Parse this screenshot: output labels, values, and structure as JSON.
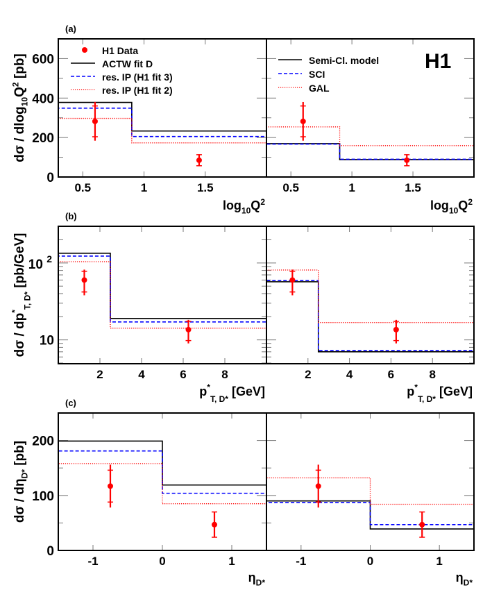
{
  "figure": {
    "logo": "H1",
    "colors": {
      "data": "#ff0000",
      "model_solid": "#000000",
      "model_dashed": "#0000ff",
      "model_dotted": "#ff0000"
    }
  },
  "legends": {
    "left": [
      {
        "key": "data",
        "label": "H1 Data",
        "style": "marker"
      },
      {
        "key": "actw",
        "label": "ACTW fit D",
        "style": "solid"
      },
      {
        "key": "resip3",
        "label": "res. IP (H1 fit 3)",
        "style": "dashed"
      },
      {
        "key": "resip2",
        "label": "res. IP (H1 fit 2)",
        "style": "dotted"
      }
    ],
    "right": [
      {
        "key": "semicl",
        "label": "Semi-Cl. model",
        "style": "solid"
      },
      {
        "key": "sci",
        "label": "SCI",
        "style": "dashed"
      },
      {
        "key": "gal",
        "label": "GAL",
        "style": "dotted"
      }
    ]
  },
  "chart_data": [
    {
      "id": "a",
      "panel_label": "(a)",
      "type": "line",
      "ylabel": {
        "pre": "dσ / dlog",
        "sub": "10",
        "main": "Q",
        "sup": "2",
        "post": "  [pb]"
      },
      "xlabel": {
        "pre": "log",
        "sub": "10",
        "main": "Q",
        "sup": "2"
      },
      "xlim": [
        0.3,
        2.0
      ],
      "ylim": [
        0,
        700
      ],
      "yscale": "linear",
      "xticks": [
        0.5,
        1,
        1.5
      ],
      "xtick_labels": [
        "0.5",
        "1",
        "1.5"
      ],
      "yticks": [
        0,
        200,
        400,
        600
      ],
      "ytick_labels": [
        "0",
        "200",
        "400",
        "600"
      ],
      "bin_edges": [
        0.3,
        0.9,
        2.0
      ],
      "data": {
        "name": "H1 Data",
        "x": [
          0.6,
          1.45
        ],
        "y": [
          282,
          85
        ],
        "err_stat": [
          78,
          28
        ],
        "err_tot": [
          98,
          30
        ]
      },
      "left": {
        "series": [
          {
            "name": "ACTW fit D",
            "style": "solid",
            "values": [
              378,
              233
            ]
          },
          {
            "name": "res. IP (H1 fit 3)",
            "style": "dashed",
            "values": [
              349,
              205
            ]
          },
          {
            "name": "res. IP (H1 fit 2)",
            "style": "dotted",
            "values": [
              297,
              173
            ]
          }
        ]
      },
      "right": {
        "series": [
          {
            "name": "Semi-Cl. model",
            "style": "solid",
            "values": [
              169,
              88
            ]
          },
          {
            "name": "SCI",
            "style": "dashed",
            "values": [
              167,
              90
            ]
          },
          {
            "name": "GAL",
            "style": "dotted",
            "values": [
              254,
              159
            ]
          }
        ]
      }
    },
    {
      "id": "b",
      "panel_label": "(b)",
      "type": "line",
      "ylabel": {
        "pre": "dσ / dp",
        "sup": "*",
        "sub": "T, D*",
        "post": "   [pb/GeV]"
      },
      "xlabel": {
        "pre": "p",
        "sup": "*",
        "sub": "T, D*",
        "post": "   [GeV]"
      },
      "xlim": [
        0,
        10
      ],
      "ylim": [
        4.9,
        300
      ],
      "yscale": "log",
      "xticks": [
        2,
        4,
        6,
        8
      ],
      "xtick_labels": [
        "2",
        "4",
        "6",
        "8"
      ],
      "yticks": [
        10,
        100
      ],
      "ytick_labels": [
        "10",
        "10 2"
      ],
      "bin_edges": [
        0,
        2.5,
        10
      ],
      "data": {
        "name": "H1 Data",
        "x": [
          1.25,
          6.25
        ],
        "y": [
          60,
          13.6
        ],
        "err_stat": [
          18,
          3.8
        ],
        "err_tot": [
          22,
          4.6
        ]
      },
      "left": {
        "series": [
          {
            "name": "ACTW fit D",
            "style": "solid",
            "values": [
              134,
              19
            ]
          },
          {
            "name": "res. IP (H1 fit 3)",
            "style": "dashed",
            "values": [
              123,
              17.1
            ]
          },
          {
            "name": "res. IP (H1 fit 2)",
            "style": "dotted",
            "values": [
              104,
              14.2
            ]
          }
        ]
      },
      "right": {
        "series": [
          {
            "name": "Semi-Cl. model",
            "style": "solid",
            "values": [
              57,
              7.0
            ]
          },
          {
            "name": "SCI",
            "style": "dashed",
            "values": [
              59,
              7.3
            ]
          },
          {
            "name": "GAL",
            "style": "dotted",
            "values": [
              81,
              16.8
            ]
          }
        ]
      }
    },
    {
      "id": "c",
      "panel_label": "(c)",
      "type": "line",
      "ylabel": {
        "pre": "dσ / dη",
        "sub": "D*",
        "post": "  [pb]"
      },
      "xlabel": {
        "pre": "η",
        "sub": "D*"
      },
      "xlim": [
        -1.5,
        1.5
      ],
      "ylim": [
        0,
        250
      ],
      "yscale": "linear",
      "xticks": [
        -1,
        0,
        1
      ],
      "xtick_labels": [
        "-1",
        "0",
        "1"
      ],
      "yticks": [
        0,
        100,
        200
      ],
      "ytick_labels": [
        "0",
        "100",
        "200"
      ],
      "bin_edges": [
        -1.5,
        0,
        1.5
      ],
      "data": {
        "name": "H1 Data",
        "x": [
          -0.75,
          0.75
        ],
        "y": [
          117,
          47
        ],
        "err_stat": [
          29,
          23
        ],
        "err_tot": [
          39,
          23
        ]
      },
      "left": {
        "series": [
          {
            "name": "ACTW fit D",
            "style": "solid",
            "values": [
              199,
              119
            ]
          },
          {
            "name": "res. IP (H1 fit 3)",
            "style": "dashed",
            "values": [
              181,
              104
            ]
          },
          {
            "name": "res. IP (H1 fit 2)",
            "style": "dotted",
            "values": [
              158,
              85
            ]
          }
        ]
      },
      "right": {
        "series": [
          {
            "name": "Semi-Cl. model",
            "style": "solid",
            "values": [
              90,
              39
            ]
          },
          {
            "name": "SCI",
            "style": "dashed",
            "values": [
              87,
              47
            ]
          },
          {
            "name": "GAL",
            "style": "dotted",
            "values": [
              132,
              84
            ]
          }
        ]
      }
    }
  ]
}
